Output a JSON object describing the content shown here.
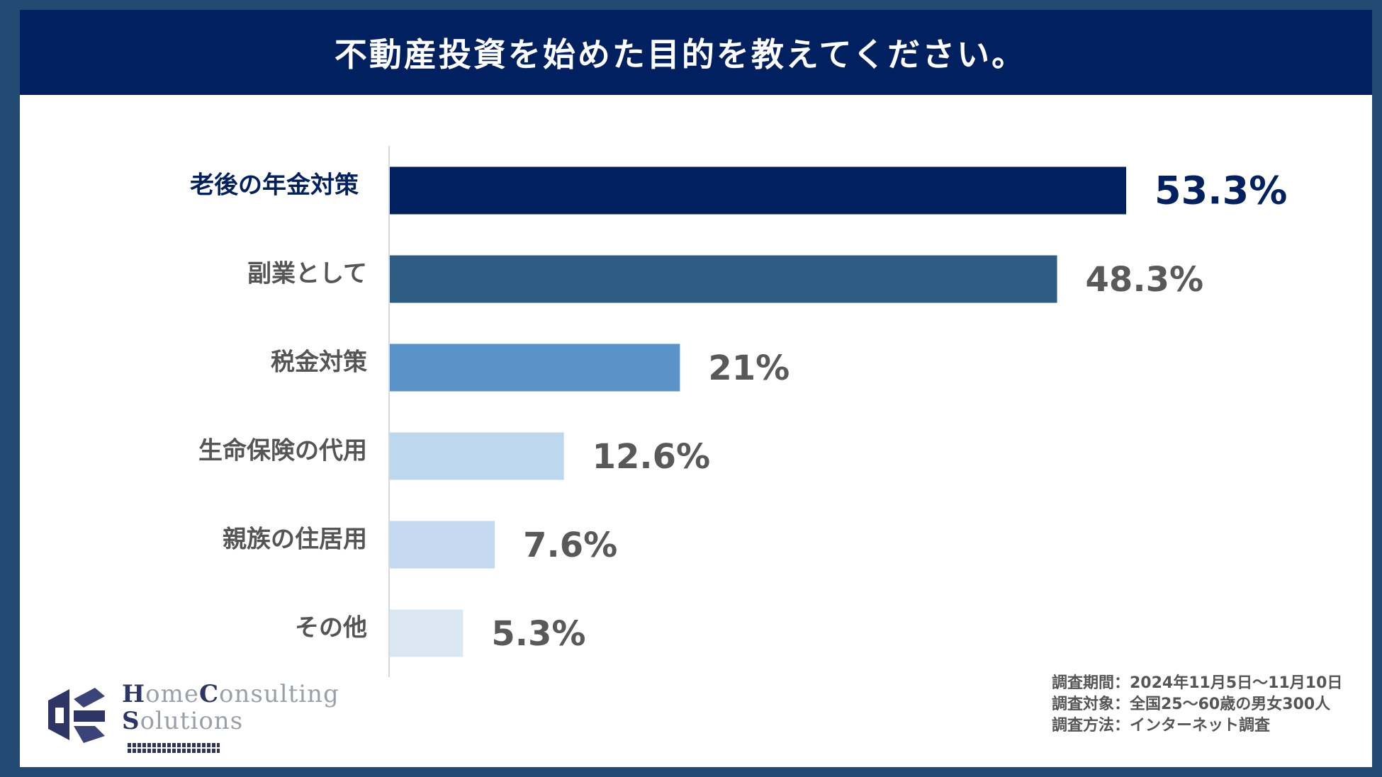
{
  "title": "不動産投資を始めた目的を教えてください。",
  "colors": {
    "header_bg": "#00205f",
    "frame": "#234a72",
    "bars": [
      "#00205f",
      "#2e5c82",
      "#5a93c8",
      "#bdd7ee",
      "#c5daf0",
      "#dbe8f4"
    ]
  },
  "chart_data": {
    "type": "bar",
    "orientation": "horizontal",
    "title": "不動産投資を始めた目的を教えてください。",
    "categories": [
      "老後の年金対策",
      "副業として",
      "税金対策",
      "生命保険の代用",
      "親族の住居用",
      "その他"
    ],
    "values": [
      53.3,
      48.3,
      21,
      12.6,
      7.6,
      5.3
    ],
    "value_labels": [
      "53.3%",
      "48.3%",
      "21%",
      "12.6%",
      "7.6%",
      "5.3%"
    ],
    "unit": "%",
    "xlim": [
      0,
      60
    ],
    "grid": false,
    "legend": "none"
  },
  "logo": {
    "line1_cap1": "H",
    "line1_rest1": "ome",
    "line1_cap2": "C",
    "line1_rest2": "onsulting",
    "line2_cap": "S",
    "line2_rest": "olutions"
  },
  "notes": [
    "調査期間：2024年11月5日〜11月10日",
    "調査対象：全国25〜60歳の男女300人",
    "調査方法：インターネット調査"
  ]
}
